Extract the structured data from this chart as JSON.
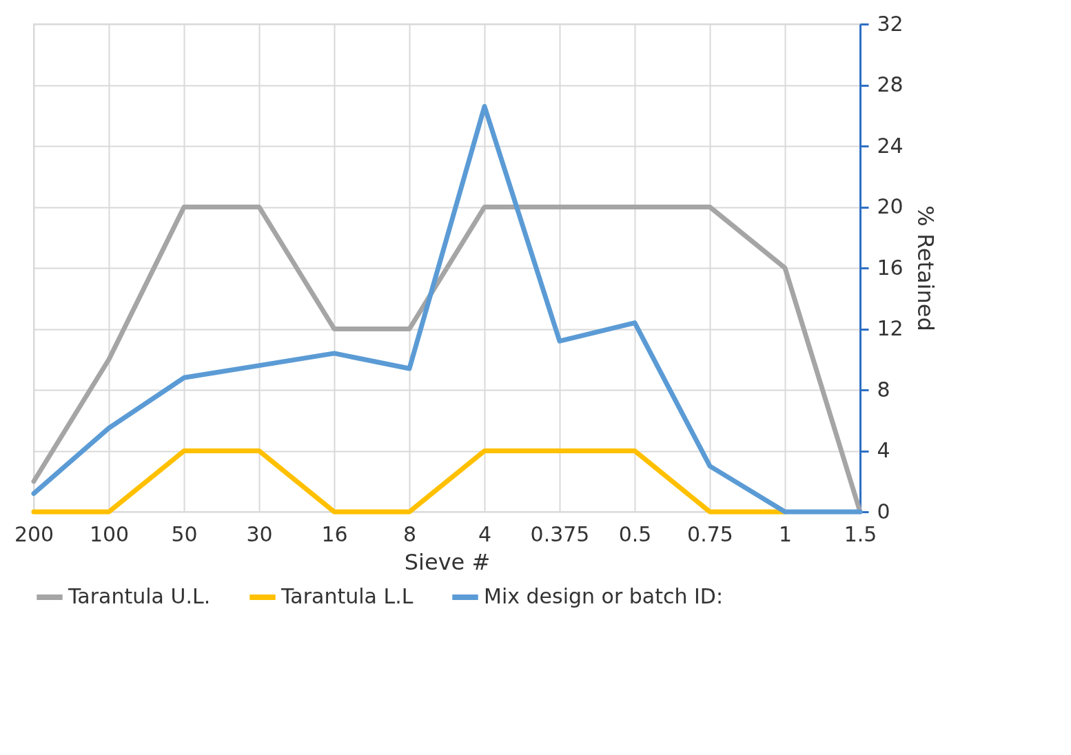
{
  "chart_data": {
    "type": "line",
    "xlabel": "Sieve #",
    "ylabel": "% Retained",
    "categories": [
      "200",
      "100",
      "50",
      "30",
      "16",
      "8",
      "4",
      "0.375",
      "0.5",
      "0.75",
      "1",
      "1.5"
    ],
    "series": [
      {
        "name": "Tarantula U.L.",
        "color": "#a5a5a5",
        "values": [
          2,
          10,
          20,
          20,
          12,
          12,
          20,
          20,
          20,
          20,
          16,
          0
        ]
      },
      {
        "name": "Tarantula L.L",
        "color": "#ffc000",
        "values": [
          0,
          0,
          4,
          4,
          0,
          0,
          4,
          4,
          4,
          0,
          0,
          null
        ]
      },
      {
        "name": "Mix design or batch ID:",
        "color": "#5b9bd5",
        "values": [
          1.2,
          5.5,
          8.8,
          9.6,
          10.4,
          9.4,
          26.6,
          11.2,
          12.4,
          3.0,
          0,
          0
        ]
      }
    ],
    "ylim": [
      0,
      32
    ],
    "yticks": [
      0,
      4,
      8,
      12,
      16,
      20,
      24,
      28,
      32
    ],
    "grid": true,
    "legend": "bottom",
    "line_style": "solid"
  }
}
